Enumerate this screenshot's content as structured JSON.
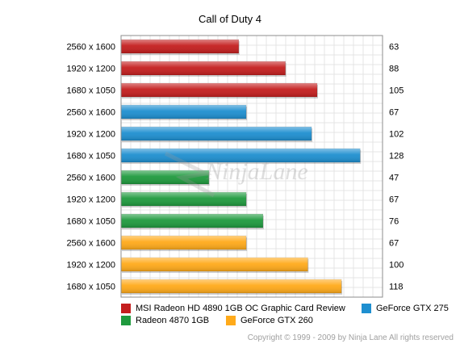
{
  "chart_data": {
    "type": "bar",
    "orientation": "horizontal",
    "title": "Call of Duty 4",
    "categories": [
      "2560 x 1600",
      "1920 x 1200",
      "1680 x 1050",
      "2560 x 1600",
      "1920 x 1200",
      "1680 x 1050",
      "2560 x 1600",
      "1920 x 1200",
      "1680 x 1050",
      "2560 x 1600",
      "1920 x 1200",
      "1680 x 1050"
    ],
    "values": [
      63,
      88,
      105,
      67,
      102,
      128,
      47,
      67,
      76,
      67,
      100,
      118
    ],
    "series": [
      {
        "name": "MSI Radeon HD 4890 1GB OC Graphic Card Review",
        "color": "#c41e1e",
        "rows": [
          0,
          1,
          2
        ]
      },
      {
        "name": "GeForce GTX 275",
        "color": "#1e8fd0",
        "rows": [
          3,
          4,
          5
        ]
      },
      {
        "name": "Radeon 4870 1GB",
        "color": "#1f9a3e",
        "rows": [
          6,
          7,
          8
        ]
      },
      {
        "name": "GeForce GTX 260",
        "color": "#ffaa1a",
        "rows": [
          9,
          10,
          11
        ]
      }
    ],
    "xlim": [
      0,
      140
    ],
    "grid": true,
    "legend_position": "bottom"
  },
  "watermark_text": "NinjaLane",
  "copyright": "Copyright © 1999 - 2009 by Ninja Lane All rights reserved"
}
